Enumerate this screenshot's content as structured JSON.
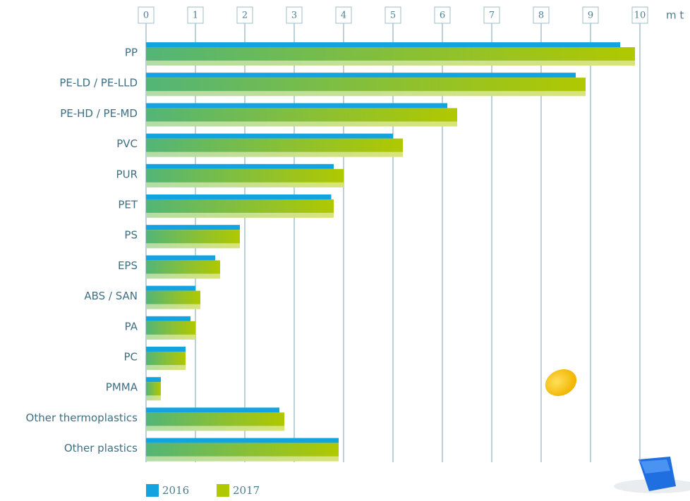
{
  "chart_data": {
    "type": "hbar",
    "unit": "m t",
    "categories": [
      "PP",
      "PE-LD / PE-LLD",
      "PE-HD / PE-MD",
      "PVC",
      "PUR",
      "PET",
      "PS",
      "EPS",
      "ABS / SAN",
      "PA",
      "PC",
      "PMMA",
      "Other thermoplastics",
      "Other plastics"
    ],
    "series": [
      {
        "name": "2016",
        "color": "#12a3e0",
        "values": [
          9.6,
          8.7,
          6.1,
          5.0,
          3.8,
          3.75,
          1.9,
          1.4,
          1.0,
          0.9,
          0.8,
          0.3,
          2.7,
          3.9
        ]
      },
      {
        "name": "2017",
        "color": "#b0c800",
        "values": [
          9.9,
          8.9,
          6.3,
          5.2,
          4.0,
          3.8,
          1.9,
          1.5,
          1.1,
          1.0,
          0.8,
          0.3,
          2.8,
          3.9
        ]
      }
    ],
    "xlim": [
      0,
      10
    ],
    "xticks": [
      0,
      1,
      2,
      3,
      4,
      5,
      6,
      7,
      8,
      9,
      10
    ],
    "grid": true
  }
}
